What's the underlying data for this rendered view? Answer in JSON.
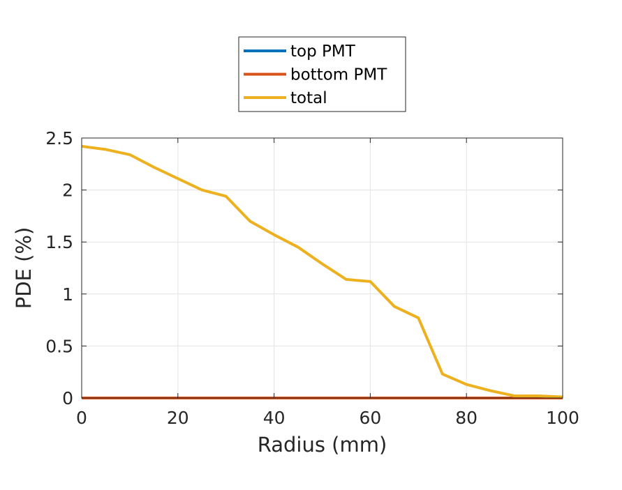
{
  "chart_data": {
    "type": "line",
    "xlabel": "Radius (mm)",
    "ylabel": "PDE (%)",
    "xlim": [
      0,
      100
    ],
    "ylim": [
      0,
      2.5
    ],
    "x_ticks": [
      0,
      20,
      40,
      60,
      80,
      100
    ],
    "x_tick_labels": [
      "0",
      "20",
      "40",
      "60",
      "80",
      "100"
    ],
    "y_ticks": [
      0,
      0.5,
      1,
      1.5,
      2,
      2.5
    ],
    "y_tick_labels": [
      "0",
      "0.5",
      "1",
      "1.5",
      "2",
      "2.5"
    ],
    "grid": true,
    "legend_position": "top-center, above axes",
    "x": [
      0,
      5,
      10,
      15,
      20,
      25,
      30,
      35,
      40,
      45,
      50,
      55,
      60,
      65,
      70,
      75,
      80,
      85,
      90,
      95,
      100
    ],
    "series": [
      {
        "name": "top PMT",
        "color": "#0072BD",
        "values": [
          0,
          0,
          0,
          0,
          0,
          0,
          0,
          0,
          0,
          0,
          0,
          0,
          0,
          0,
          0,
          0,
          0,
          0,
          0,
          0,
          0
        ]
      },
      {
        "name": "bottom PMT",
        "color": "#D95319",
        "values": [
          0,
          0,
          0,
          0,
          0,
          0,
          0,
          0,
          0,
          0,
          0,
          0,
          0,
          0,
          0,
          0,
          0,
          0,
          0,
          0,
          0
        ]
      },
      {
        "name": "total",
        "color": "#EDB120",
        "values": [
          2.42,
          2.39,
          2.34,
          2.22,
          2.11,
          2.0,
          1.94,
          1.7,
          1.57,
          1.45,
          1.29,
          1.14,
          1.12,
          0.88,
          0.77,
          0.23,
          0.13,
          0.07,
          0.02,
          0.02,
          0.01
        ]
      }
    ]
  }
}
